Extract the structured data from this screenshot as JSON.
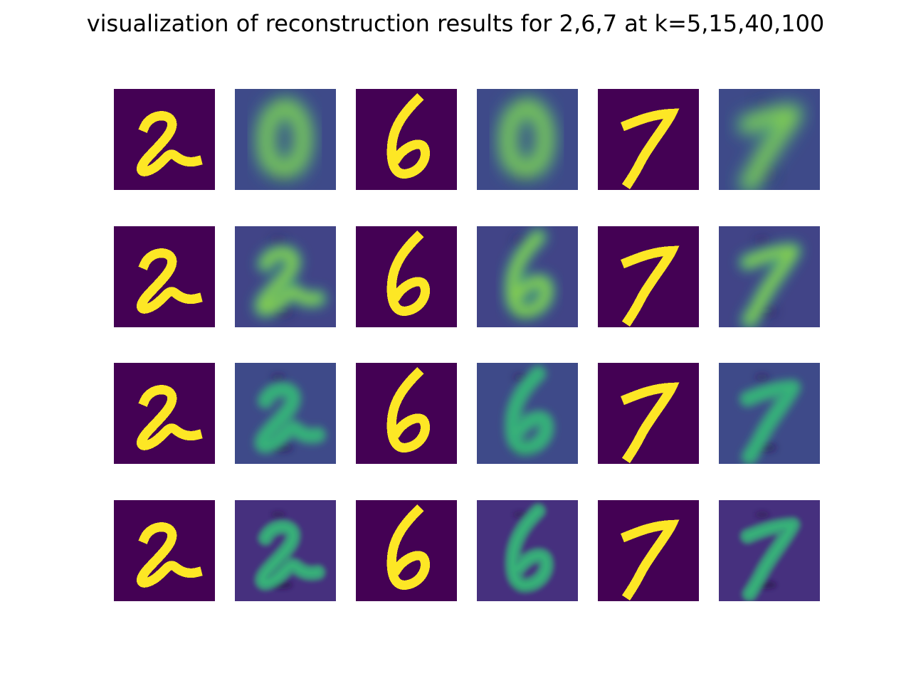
{
  "figure": {
    "title": "visualization of reconstruction results for 2,6,7 at k=5,15,40,100"
  },
  "colormap": {
    "name": "viridis",
    "low": "#440154",
    "high": "#fde725"
  },
  "digits": [
    "2",
    "6",
    "7"
  ],
  "k_values": [
    5,
    15,
    40,
    100
  ],
  "panel_kinds": [
    "original",
    "reconstruction"
  ],
  "rows": [
    {
      "k": 5,
      "panels": [
        {
          "digit": "2",
          "kind": "original"
        },
        {
          "digit": "2",
          "kind": "reconstruction",
          "appearance": "blurry-0-like"
        },
        {
          "digit": "6",
          "kind": "original"
        },
        {
          "digit": "6",
          "kind": "reconstruction",
          "appearance": "blurry-0-like"
        },
        {
          "digit": "7",
          "kind": "original"
        },
        {
          "digit": "7",
          "kind": "reconstruction",
          "appearance": "faint-7"
        }
      ]
    },
    {
      "k": 15,
      "panels": [
        {
          "digit": "2",
          "kind": "original"
        },
        {
          "digit": "2",
          "kind": "reconstruction",
          "appearance": "blurry-2"
        },
        {
          "digit": "6",
          "kind": "original"
        },
        {
          "digit": "6",
          "kind": "reconstruction",
          "appearance": "blurry-6"
        },
        {
          "digit": "7",
          "kind": "original"
        },
        {
          "digit": "7",
          "kind": "reconstruction",
          "appearance": "blurry-7"
        }
      ]
    },
    {
      "k": 40,
      "panels": [
        {
          "digit": "2",
          "kind": "original"
        },
        {
          "digit": "2",
          "kind": "reconstruction",
          "appearance": "recognizable-2"
        },
        {
          "digit": "6",
          "kind": "original"
        },
        {
          "digit": "6",
          "kind": "reconstruction",
          "appearance": "recognizable-6"
        },
        {
          "digit": "7",
          "kind": "original"
        },
        {
          "digit": "7",
          "kind": "reconstruction",
          "appearance": "recognizable-7"
        }
      ]
    },
    {
      "k": 100,
      "panels": [
        {
          "digit": "2",
          "kind": "original"
        },
        {
          "digit": "2",
          "kind": "reconstruction",
          "appearance": "sharp-2"
        },
        {
          "digit": "6",
          "kind": "original"
        },
        {
          "digit": "6",
          "kind": "reconstruction",
          "appearance": "sharp-6"
        },
        {
          "digit": "7",
          "kind": "original"
        },
        {
          "digit": "7",
          "kind": "reconstruction",
          "appearance": "sharp-7"
        }
      ]
    }
  ]
}
